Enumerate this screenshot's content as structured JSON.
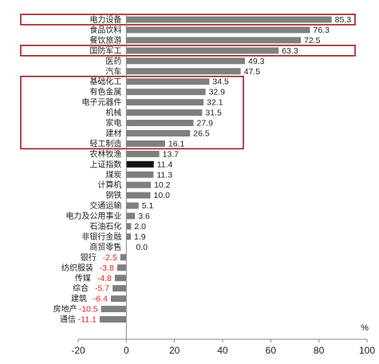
{
  "chart_data": {
    "type": "bar",
    "orientation": "horizontal",
    "categories": [
      "电力设备",
      "食品饮料",
      "餐饮旅游",
      "国防军工",
      "医药",
      "汽车",
      "基础化工",
      "有色金属",
      "电子元器件",
      "机械",
      "家电",
      "建材",
      "轻工制造",
      "农林牧渔",
      "上证指数",
      "煤炭",
      "计算机",
      "钢铁",
      "交通运输",
      "电力及公用事业",
      "石油石化",
      "非银行金融",
      "商贸零售",
      "银行",
      "纺织服装",
      "传媒",
      "综合",
      "建筑",
      "房地产",
      "通信"
    ],
    "values": [
      85.3,
      76.3,
      72.5,
      63.3,
      49.3,
      47.5,
      34.5,
      32.9,
      32.1,
      31.5,
      27.9,
      26.5,
      16.1,
      13.7,
      11.4,
      11.3,
      10.2,
      10.0,
      5.1,
      3.6,
      2.0,
      1.9,
      0.0,
      -2.5,
      -3.8,
      -4.8,
      -5.7,
      -6.4,
      -10.5,
      -11.1
    ],
    "value_labels": [
      "85.3",
      "76.3",
      "72.5",
      "63.3",
      "49.3",
      "47.5",
      "34.5",
      "32.9",
      "32.1",
      "31.5",
      "27.9",
      "26.5",
      "16.1",
      "13.7",
      "11.4",
      "11.3",
      "10.2",
      "10.0",
      "5.1",
      "3.6",
      "2.0",
      "1.9",
      "0.0",
      "-2.5",
      "-3.8",
      "-4.8",
      "-5.7",
      "-6.4",
      "-10.5",
      "-11.1"
    ],
    "highlight_category": "上证指数",
    "highlight_groups": [
      [
        "电力设备"
      ],
      [
        "国防军工"
      ],
      [
        "基础化工",
        "有色金属",
        "电子元器件",
        "机械",
        "家电",
        "建材",
        "轻工制造"
      ]
    ],
    "xlim": [
      -20,
      100
    ],
    "xticks": [
      -20,
      0,
      20,
      40,
      60,
      80,
      100
    ],
    "unit_label": "%",
    "grid": false,
    "colors": {
      "bar": "#7f7f7f",
      "highlight_bar": "#111111",
      "negative_label": "#e8201f",
      "positive_label": "#222222",
      "highlight_box": "#a0181d",
      "axis": "#888888"
    }
  }
}
